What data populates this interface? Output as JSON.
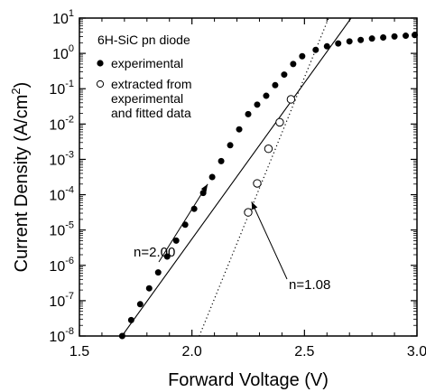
{
  "chart_data": {
    "type": "scatter",
    "xlabel": "Forward Voltage  (V)",
    "ylabel_main": "Current Density (A/cm",
    "ylabel_sup": "2",
    "ylabel_close": ")",
    "xlim": [
      1.5,
      3.0
    ],
    "ylim_exp": [
      -8,
      1
    ],
    "y_scale": "log",
    "grid": false,
    "x_ticks": [
      {
        "value": 1.5,
        "label": "1.5"
      },
      {
        "value": 2.0,
        "label": "2.0"
      },
      {
        "value": 2.5,
        "label": "2.5"
      },
      {
        "value": 3.0,
        "label": "3.0"
      }
    ],
    "y_ticks": [
      {
        "exp": 1,
        "base": "10",
        "sup": "1"
      },
      {
        "exp": 0,
        "base": "10",
        "sup": "0"
      },
      {
        "exp": -1,
        "base": "10",
        "sup": "-1"
      },
      {
        "exp": -2,
        "base": "10",
        "sup": "-2"
      },
      {
        "exp": -3,
        "base": "10",
        "sup": "-3"
      },
      {
        "exp": -4,
        "base": "10",
        "sup": "-4"
      },
      {
        "exp": -5,
        "base": "10",
        "sup": "-5"
      },
      {
        "exp": -6,
        "base": "10",
        "sup": "-6"
      },
      {
        "exp": -7,
        "base": "10",
        "sup": "-7"
      },
      {
        "exp": -8,
        "base": "10",
        "sup": "-8"
      }
    ],
    "legend": {
      "title": "6H-SiC pn diode",
      "placement": "top-left",
      "entries": [
        {
          "marker": "filled-circle",
          "lines": [
            "experimental"
          ]
        },
        {
          "marker": "open-circle",
          "lines": [
            "extracted from",
            "experimental",
            "and fitted data"
          ]
        }
      ]
    },
    "series": [
      {
        "name": "experimental",
        "marker": "filled-circle",
        "points": [
          {
            "x": 1.69,
            "y_exp": -8.0
          },
          {
            "x": 1.73,
            "y_exp": -7.55
          },
          {
            "x": 1.77,
            "y_exp": -7.1
          },
          {
            "x": 1.81,
            "y_exp": -6.65
          },
          {
            "x": 1.85,
            "y_exp": -6.2
          },
          {
            "x": 1.89,
            "y_exp": -5.75
          },
          {
            "x": 1.93,
            "y_exp": -5.3
          },
          {
            "x": 1.97,
            "y_exp": -4.85
          },
          {
            "x": 2.01,
            "y_exp": -4.4
          },
          {
            "x": 2.05,
            "y_exp": -3.95
          },
          {
            "x": 2.09,
            "y_exp": -3.5
          },
          {
            "x": 2.13,
            "y_exp": -3.05
          },
          {
            "x": 2.17,
            "y_exp": -2.6
          },
          {
            "x": 2.21,
            "y_exp": -2.15
          },
          {
            "x": 2.25,
            "y_exp": -1.72
          },
          {
            "x": 2.29,
            "y_exp": -1.45
          },
          {
            "x": 2.33,
            "y_exp": -1.2
          },
          {
            "x": 2.37,
            "y_exp": -0.9
          },
          {
            "x": 2.41,
            "y_exp": -0.6
          },
          {
            "x": 2.45,
            "y_exp": -0.3
          },
          {
            "x": 2.49,
            "y_exp": -0.08
          },
          {
            "x": 2.55,
            "y_exp": 0.1
          },
          {
            "x": 2.6,
            "y_exp": 0.2
          },
          {
            "x": 2.65,
            "y_exp": 0.28
          },
          {
            "x": 2.7,
            "y_exp": 0.34
          },
          {
            "x": 2.75,
            "y_exp": 0.38
          },
          {
            "x": 2.8,
            "y_exp": 0.42
          },
          {
            "x": 2.85,
            "y_exp": 0.45
          },
          {
            "x": 2.9,
            "y_exp": 0.48
          },
          {
            "x": 2.95,
            "y_exp": 0.5
          },
          {
            "x": 2.99,
            "y_exp": 0.52
          }
        ]
      },
      {
        "name": "extracted from experimental and fitted data",
        "marker": "open-circle",
        "points": [
          {
            "x": 2.25,
            "y_exp": -4.5
          },
          {
            "x": 2.29,
            "y_exp": -3.68
          },
          {
            "x": 2.34,
            "y_exp": -2.7
          },
          {
            "x": 2.39,
            "y_exp": -1.95
          },
          {
            "x": 2.44,
            "y_exp": -1.3
          }
        ]
      }
    ],
    "fit_lines": [
      {
        "style": "solid",
        "label": "n=2.00",
        "from": {
          "x": 1.68,
          "y_exp": -8.08
        },
        "to": {
          "x": 2.73,
          "y_exp": 1.2
        }
      },
      {
        "style": "dotted",
        "label": "n=1.08",
        "from": {
          "x": 2.02,
          "y_exp": -8.2
        },
        "to": {
          "x": 2.62,
          "y_exp": 1.2
        }
      }
    ],
    "annotations": [
      {
        "text": "n=2.00",
        "target": {
          "x": 2.07,
          "y_exp": -3.7
        }
      },
      {
        "text": "n=1.08",
        "target": {
          "x": 2.265,
          "y_exp": -4.2
        }
      }
    ]
  }
}
